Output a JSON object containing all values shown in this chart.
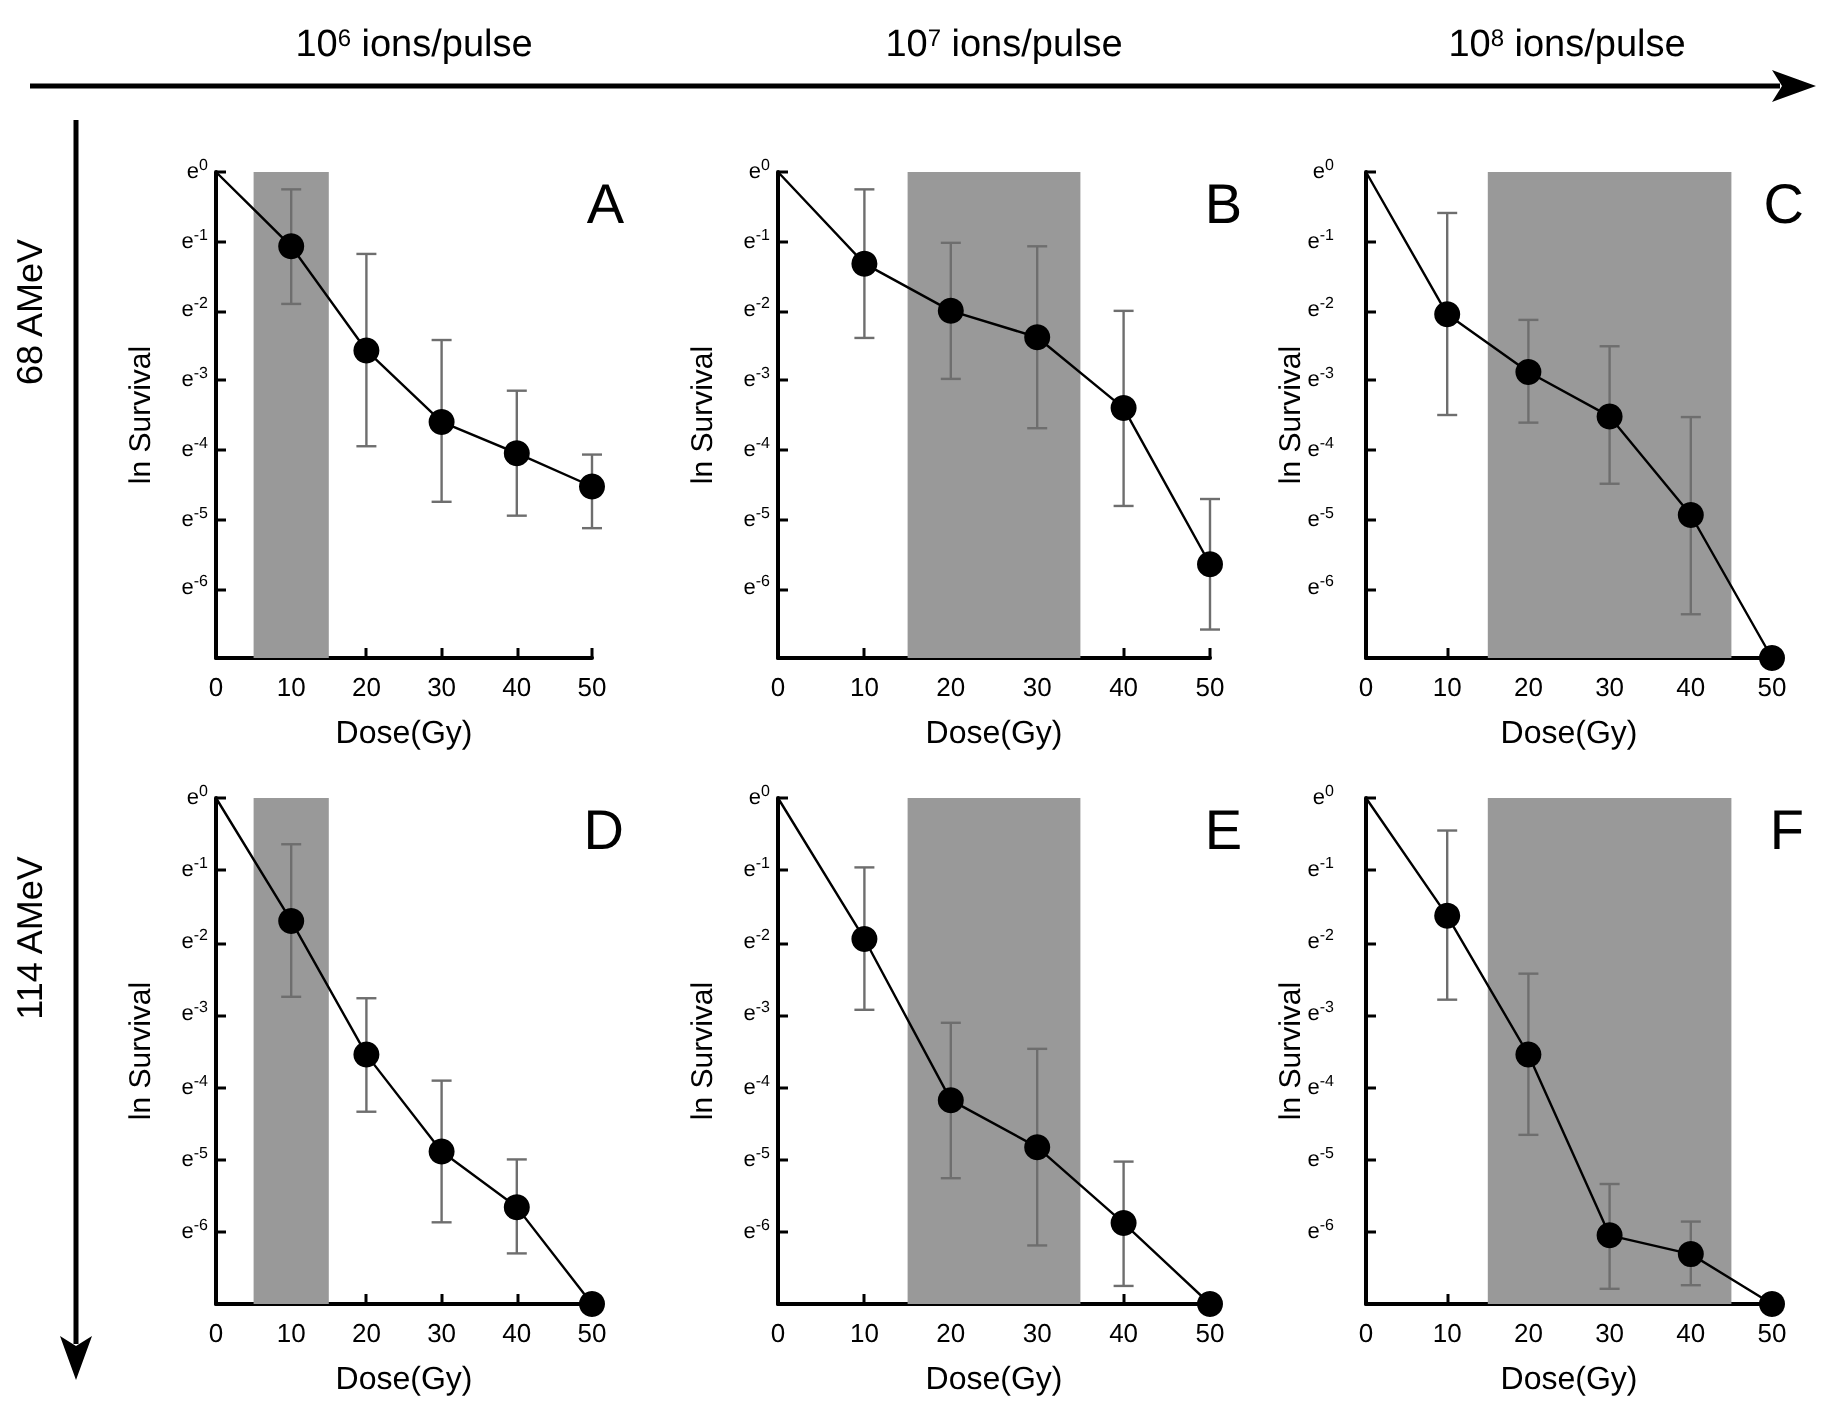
{
  "chart_data": [
    {
      "type": "line",
      "title": "10$^{6}$ ions/pulse",
      "xlabel": "Dose(Gy)",
      "ylabel": "ln Survival",
      "annotations": [
        "A",
        "68 AMeV"
      ],
      "x": [
        0,
        10,
        20,
        30,
        40,
        50
      ],
      "values": [
        0,
        -1.07,
        -2.57,
        -3.6,
        -4.05,
        -4.53
      ],
      "errors": [
        null,
        [
          -1.9,
          -0.25
        ],
        [
          -3.95,
          -1.18
        ],
        [
          -4.75,
          -2.42
        ],
        [
          -4.95,
          -3.15
        ],
        [
          -5.13,
          -4.07
        ]
      ],
      "color": "#000000",
      "xlim": [
        0,
        50
      ],
      "xticks": [
        0,
        10,
        20,
        30,
        40,
        50
      ],
      "ylim": [
        -7,
        0
      ],
      "yticks": [
        {
          "value": 0,
          "label": "e$^{0}$"
        },
        {
          "value": -1,
          "label": "e$^{-1}$"
        },
        {
          "value": -2,
          "label": "e$^{-2}$"
        },
        {
          "value": -3,
          "label": "e$^{-3}$"
        },
        {
          "value": -4,
          "label": "e$^{-4}$"
        },
        {
          "value": -5,
          "label": "e$^{-5}$"
        },
        {
          "value": -6,
          "label": "e$^{-6}$"
        }
      ],
      "bands": [
        {
          "axis": "x",
          "from": 5,
          "to": 15,
          "color": "#999999"
        }
      ],
      "marker": "circle",
      "line_style": "solid"
    },
    {
      "type": "line",
      "title": "10$^{7}$ ions/pulse",
      "xlabel": "Dose(Gy)",
      "ylabel": "ln Survival",
      "annotations": [
        "B"
      ],
      "x": [
        0,
        10,
        20,
        30,
        40,
        50
      ],
      "values": [
        0,
        -1.32,
        -2.0,
        -2.38,
        -3.4,
        -5.65
      ],
      "errors": [
        null,
        [
          -2.39,
          -0.25
        ],
        [
          -2.98,
          -1.02
        ],
        [
          -3.69,
          -1.07
        ],
        [
          -4.81,
          -2.0
        ],
        [
          -6.59,
          -4.71
        ]
      ],
      "color": "#000000",
      "xlim": [
        0,
        50
      ],
      "xticks": [
        0,
        10,
        20,
        30,
        40,
        50
      ],
      "ylim": [
        -7,
        0
      ],
      "yticks": [
        {
          "value": 0,
          "label": "e$^{0}$"
        },
        {
          "value": -1,
          "label": "e$^{-1}$"
        },
        {
          "value": -2,
          "label": "e$^{-2}$"
        },
        {
          "value": -3,
          "label": "e$^{-3}$"
        },
        {
          "value": -4,
          "label": "e$^{-4}$"
        },
        {
          "value": -5,
          "label": "e$^{-5}$"
        },
        {
          "value": -6,
          "label": "e$^{-6}$"
        }
      ],
      "bands": [
        {
          "axis": "x",
          "from": 15,
          "to": 35,
          "color": "#999999"
        }
      ],
      "marker": "circle",
      "line_style": "solid"
    },
    {
      "type": "line",
      "title": "10$^{8}$ ions/pulse",
      "xlabel": "Dose(Gy)",
      "ylabel": "ln Survival",
      "annotations": [
        "C"
      ],
      "x": [
        0,
        10,
        20,
        30,
        40,
        50
      ],
      "values": [
        0,
        -2.05,
        -2.88,
        -3.52,
        -4.94,
        -7
      ],
      "errors": [
        null,
        [
          -3.5,
          -0.59
        ],
        [
          -3.61,
          -2.13
        ],
        [
          -4.49,
          -2.51
        ],
        [
          -6.37,
          -3.53
        ],
        null
      ],
      "color": "#000000",
      "xlim": [
        0,
        50
      ],
      "xticks": [
        0,
        10,
        20,
        30,
        40,
        50
      ],
      "ylim": [
        -7,
        0
      ],
      "yticks": [
        {
          "value": 0,
          "label": "e$^{0}$"
        },
        {
          "value": -1,
          "label": "e$^{-1}$"
        },
        {
          "value": -2,
          "label": "e$^{-2}$"
        },
        {
          "value": -3,
          "label": "e$^{-3}$"
        },
        {
          "value": -4,
          "label": "e$^{-4}$"
        },
        {
          "value": -5,
          "label": "e$^{-5}$"
        },
        {
          "value": -6,
          "label": "e$^{-6}$"
        }
      ],
      "bands": [
        {
          "axis": "x",
          "from": 15,
          "to": 45,
          "color": "#999999"
        }
      ],
      "marker": "circle",
      "line_style": "solid"
    },
    {
      "type": "line",
      "xlabel": "Dose(Gy)",
      "ylabel": "ln Survival",
      "annotations": [
        "D",
        "114 AMeV"
      ],
      "x": [
        0,
        10,
        20,
        30,
        40,
        50
      ],
      "values": [
        0,
        -1.7,
        -3.55,
        -4.89,
        -5.66,
        -7
      ],
      "errors": [
        null,
        [
          -2.75,
          -0.64
        ],
        [
          -4.34,
          -2.77
        ],
        [
          -5.87,
          -3.91
        ],
        [
          -6.3,
          -5.0
        ],
        null
      ],
      "color": "#000000",
      "xlim": [
        0,
        50
      ],
      "xticks": [
        0,
        10,
        20,
        30,
        40,
        50
      ],
      "ylim": [
        -7,
        0
      ],
      "yticks": [
        {
          "value": 0,
          "label": "e$^{0}$"
        },
        {
          "value": -1,
          "label": "e$^{-1}$"
        },
        {
          "value": -2,
          "label": "e$^{-2}$"
        },
        {
          "value": -3,
          "label": "e$^{-3}$"
        },
        {
          "value": -4,
          "label": "e$^{-4}$"
        },
        {
          "value": -5,
          "label": "e$^{-5}$"
        },
        {
          "value": -6,
          "label": "e$^{-6}$"
        }
      ],
      "bands": [
        {
          "axis": "x",
          "from": 5,
          "to": 15,
          "color": "#999999"
        }
      ],
      "marker": "circle",
      "line_style": "solid"
    },
    {
      "type": "line",
      "xlabel": "Dose(Gy)",
      "ylabel": "ln Survival",
      "annotations": [
        "E"
      ],
      "x": [
        0,
        10,
        20,
        30,
        40,
        50
      ],
      "values": [
        0,
        -1.95,
        -4.18,
        -4.83,
        -5.88,
        -7
      ],
      "errors": [
        null,
        [
          -2.93,
          -0.96
        ],
        [
          -5.26,
          -3.11
        ],
        [
          -6.19,
          -3.47
        ],
        [
          -6.75,
          -5.03
        ],
        null
      ],
      "color": "#000000",
      "xlim": [
        0,
        50
      ],
      "xticks": [
        0,
        10,
        20,
        30,
        40,
        50
      ],
      "ylim": [
        -7,
        0
      ],
      "yticks": [
        {
          "value": 0,
          "label": "e$^{0}$"
        },
        {
          "value": -1,
          "label": "e$^{-1}$"
        },
        {
          "value": -2,
          "label": "e$^{-2}$"
        },
        {
          "value": -3,
          "label": "e$^{-3}$"
        },
        {
          "value": -4,
          "label": "e$^{-4}$"
        },
        {
          "value": -5,
          "label": "e$^{-5}$"
        },
        {
          "value": -6,
          "label": "e$^{-6}$"
        }
      ],
      "bands": [
        {
          "axis": "x",
          "from": 15,
          "to": 35,
          "color": "#999999"
        }
      ],
      "marker": "circle",
      "line_style": "solid"
    },
    {
      "type": "line",
      "xlabel": "Dose(Gy)",
      "ylabel": "ln Survival",
      "annotations": [
        "F"
      ],
      "x": [
        0,
        10,
        20,
        30,
        40,
        50
      ],
      "values": [
        0,
        -1.63,
        -3.55,
        -6.05,
        -6.31,
        -7
      ],
      "errors": [
        null,
        [
          -2.79,
          -0.45
        ],
        [
          -4.66,
          -2.43
        ],
        [
          -6.79,
          -5.34
        ],
        [
          -6.74,
          -5.86
        ],
        null
      ],
      "color": "#000000",
      "xlim": [
        0,
        50
      ],
      "xticks": [
        0,
        10,
        20,
        30,
        40,
        50
      ],
      "ylim": [
        -7,
        0
      ],
      "yticks": [
        {
          "value": 0,
          "label": "e$^{0}$"
        },
        {
          "value": -1,
          "label": "e$^{-1}$"
        },
        {
          "value": -2,
          "label": "e$^{-2}$"
        },
        {
          "value": -3,
          "label": "e$^{-3}$"
        },
        {
          "value": -4,
          "label": "e$^{-4}$"
        },
        {
          "value": -5,
          "label": "e$^{-5}$"
        },
        {
          "value": -6,
          "label": "e$^{-6}$"
        }
      ],
      "bands": [
        {
          "axis": "x",
          "from": 15,
          "to": 45,
          "color": "#999999"
        }
      ],
      "marker": "circle",
      "line_style": "solid"
    }
  ]
}
